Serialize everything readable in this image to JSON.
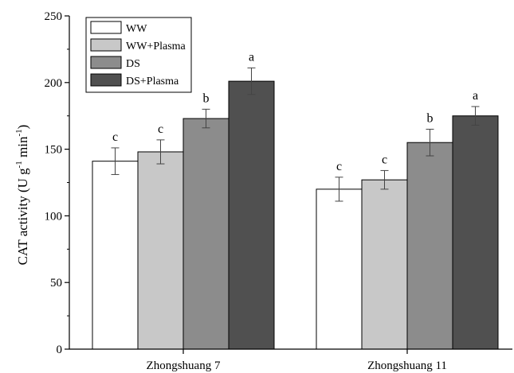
{
  "chart_data": {
    "type": "bar",
    "categories": [
      "Zhongshuang 7",
      "Zhongshuang 11"
    ],
    "ylabel_parts": {
      "main": "CAT activity (U g",
      "sup1": "-1",
      "mid": " min",
      "sup2": "-1",
      "end": ")"
    },
    "ylim": [
      0,
      250
    ],
    "yticks": [
      0,
      50,
      100,
      150,
      200,
      250
    ],
    "legend_position": "top-left",
    "series": [
      {
        "name": "WW",
        "color": "#ffffff",
        "values": [
          141,
          120
        ],
        "errors": [
          10,
          9
        ],
        "labels": [
          "c",
          "c"
        ]
      },
      {
        "name": "WW+Plasma",
        "color": "#c8c8c8",
        "values": [
          148,
          127
        ],
        "errors": [
          9,
          7
        ],
        "labels": [
          "c",
          "c"
        ]
      },
      {
        "name": "DS",
        "color": "#8c8c8c",
        "values": [
          173,
          155
        ],
        "errors": [
          7,
          10
        ],
        "labels": [
          "b",
          "b"
        ]
      },
      {
        "name": "DS+Plasma",
        "color": "#505050",
        "values": [
          201,
          175
        ],
        "errors": [
          10,
          7
        ],
        "labels": [
          "a",
          "a"
        ]
      }
    ]
  }
}
